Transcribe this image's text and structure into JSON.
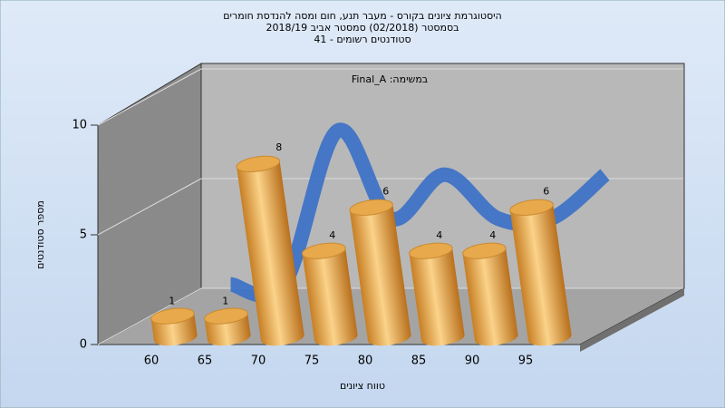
{
  "chart_data": {
    "type": "bar3d",
    "title": [
      "היסטוגרמת ציונים בקורס - מעבר תנע, חום ומסה להנדסת חומרים",
      "בסמסטר  (02/2018)  סמסטר אביב 2018/19",
      "סטודנטים רשומים - 41"
    ],
    "annotation": "Final_A :במשימה",
    "x_label": "טווח ציונים",
    "y_label": "מספר סטודנטים",
    "categories": [
      "60",
      "65",
      "70",
      "75",
      "80",
      "85",
      "90",
      "95"
    ],
    "values": [
      1,
      1,
      8,
      4,
      6,
      4,
      4,
      6
    ],
    "color": "#e9a94a",
    "ribbon_color": "#3a6fc8",
    "ylim": [
      0,
      10
    ],
    "yticks": [
      0,
      5,
      10
    ]
  }
}
